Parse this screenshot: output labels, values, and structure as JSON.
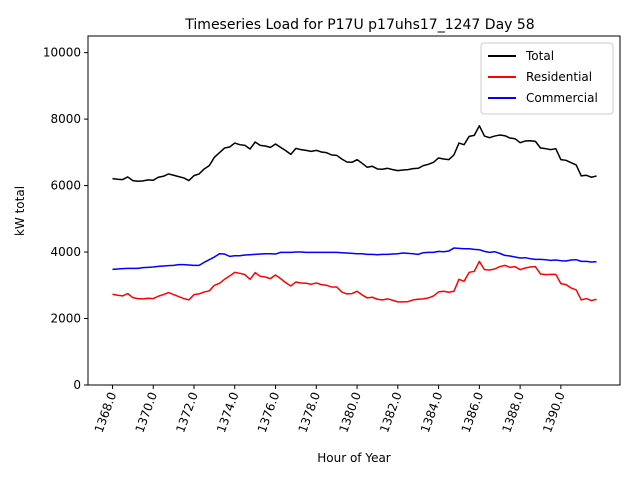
{
  "chart_data": {
    "type": "line",
    "title": "Timeseries Load for P17U p17uhs17_1247  Day 58",
    "xlabel": "Hour of Year",
    "ylabel": "kW total",
    "xlim": [
      1366.8,
      1392.9
    ],
    "ylim": [
      0,
      10500
    ],
    "xticks": [
      1368,
      1370,
      1372,
      1374,
      1376,
      1378,
      1380,
      1382,
      1384,
      1386,
      1388,
      1390
    ],
    "xtick_labels": [
      "1368.0",
      "1370.0",
      "1372.0",
      "1374.0",
      "1376.0",
      "1378.0",
      "1380.0",
      "1382.0",
      "1384.0",
      "1386.0",
      "1388.0",
      "1390.0"
    ],
    "yticks": [
      0,
      2000,
      4000,
      6000,
      8000,
      10000
    ],
    "ytick_labels": [
      "0",
      "2000",
      "4000",
      "6000",
      "8000",
      "10000"
    ],
    "legend_position": "top-right",
    "x": [
      1368.0,
      1368.25,
      1368.5,
      1368.75,
      1369.0,
      1369.25,
      1369.5,
      1369.75,
      1370.0,
      1370.25,
      1370.5,
      1370.75,
      1371.0,
      1371.25,
      1371.5,
      1371.75,
      1372.0,
      1372.25,
      1372.5,
      1372.75,
      1373.0,
      1373.25,
      1373.5,
      1373.75,
      1374.0,
      1374.25,
      1374.5,
      1374.75,
      1375.0,
      1375.25,
      1375.5,
      1375.75,
      1376.0,
      1376.25,
      1376.5,
      1376.75,
      1377.0,
      1377.25,
      1377.5,
      1377.75,
      1378.0,
      1378.25,
      1378.5,
      1378.75,
      1379.0,
      1379.25,
      1379.5,
      1379.75,
      1380.0,
      1380.25,
      1380.5,
      1380.75,
      1381.0,
      1381.25,
      1381.5,
      1381.75,
      1382.0,
      1382.25,
      1382.5,
      1382.75,
      1383.0,
      1383.25,
      1383.5,
      1383.75,
      1384.0,
      1384.25,
      1384.5,
      1384.75,
      1385.0,
      1385.25,
      1385.5,
      1385.75,
      1386.0,
      1386.25,
      1386.5,
      1386.75,
      1387.0,
      1387.25,
      1387.5,
      1387.75,
      1388.0,
      1388.25,
      1388.5,
      1388.75,
      1389.0,
      1389.25,
      1389.5,
      1389.75,
      1390.0,
      1390.25,
      1390.5,
      1390.75,
      1391.0,
      1391.25,
      1391.5,
      1391.75
    ],
    "series": [
      {
        "name": "Total",
        "color": "#000000",
        "values": [
          6210,
          6190,
          6180,
          6260,
          6150,
          6130,
          6140,
          6170,
          6160,
          6250,
          6280,
          6350,
          6310,
          6270,
          6230,
          6150,
          6300,
          6350,
          6500,
          6600,
          6850,
          6990,
          7130,
          7160,
          7280,
          7230,
          7210,
          7100,
          7310,
          7210,
          7190,
          7150,
          7250,
          7150,
          7050,
          6940,
          7120,
          7080,
          7060,
          7030,
          7060,
          7010,
          6990,
          6920,
          6910,
          6800,
          6710,
          6700,
          6780,
          6670,
          6550,
          6580,
          6500,
          6490,
          6520,
          6480,
          6450,
          6470,
          6480,
          6510,
          6520,
          6600,
          6640,
          6700,
          6830,
          6800,
          6780,
          6920,
          7280,
          7230,
          7480,
          7510,
          7800,
          7490,
          7440,
          7490,
          7520,
          7500,
          7430,
          7410,
          7290,
          7340,
          7350,
          7330,
          7130,
          7110,
          7080,
          7110,
          6780,
          6760,
          6690,
          6620,
          6290,
          6310,
          6250,
          6290
        ]
      },
      {
        "name": "Residential",
        "color": "#ff0000",
        "values": [
          2730,
          2700,
          2680,
          2750,
          2630,
          2600,
          2590,
          2610,
          2600,
          2670,
          2720,
          2780,
          2720,
          2660,
          2600,
          2560,
          2720,
          2740,
          2800,
          2830,
          3000,
          3060,
          3180,
          3280,
          3390,
          3360,
          3320,
          3180,
          3380,
          3270,
          3250,
          3200,
          3310,
          3200,
          3080,
          2980,
          3100,
          3070,
          3060,
          3030,
          3070,
          3020,
          3000,
          2950,
          2950,
          2800,
          2740,
          2750,
          2820,
          2710,
          2620,
          2640,
          2580,
          2560,
          2590,
          2550,
          2500,
          2500,
          2510,
          2560,
          2580,
          2590,
          2620,
          2680,
          2800,
          2820,
          2790,
          2820,
          3180,
          3120,
          3390,
          3420,
          3720,
          3470,
          3460,
          3490,
          3560,
          3600,
          3540,
          3560,
          3470,
          3520,
          3550,
          3560,
          3340,
          3320,
          3330,
          3330,
          3050,
          3020,
          2920,
          2860,
          2560,
          2600,
          2540,
          2580
        ]
      },
      {
        "name": "Commercial",
        "color": "#0000ff",
        "values": [
          3480,
          3490,
          3500,
          3510,
          3510,
          3510,
          3530,
          3540,
          3550,
          3570,
          3580,
          3590,
          3600,
          3620,
          3620,
          3610,
          3600,
          3600,
          3690,
          3770,
          3850,
          3950,
          3940,
          3870,
          3890,
          3890,
          3910,
          3920,
          3930,
          3940,
          3950,
          3950,
          3940,
          3990,
          3990,
          3990,
          4000,
          4000,
          3990,
          3990,
          3990,
          3990,
          3990,
          3990,
          3990,
          3980,
          3970,
          3960,
          3950,
          3950,
          3930,
          3930,
          3920,
          3930,
          3930,
          3940,
          3950,
          3970,
          3960,
          3950,
          3930,
          3980,
          3990,
          3990,
          4020,
          4010,
          4030,
          4120,
          4110,
          4100,
          4100,
          4080,
          4070,
          4020,
          3990,
          4010,
          3960,
          3900,
          3880,
          3850,
          3820,
          3830,
          3800,
          3780,
          3780,
          3770,
          3750,
          3760,
          3740,
          3730,
          3760,
          3770,
          3720,
          3720,
          3700,
          3710
        ]
      }
    ]
  }
}
